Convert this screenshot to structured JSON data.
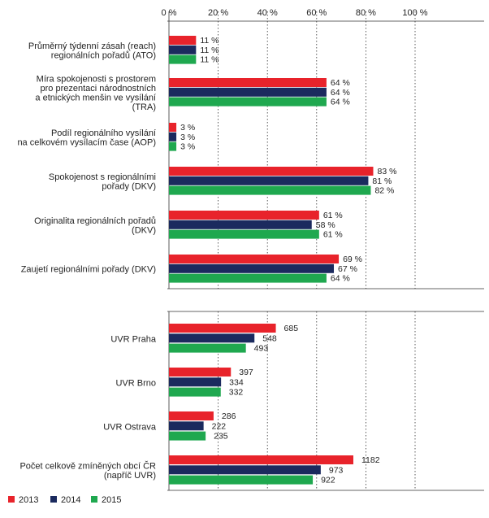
{
  "colors": {
    "2013": "#e8232b",
    "2014": "#1b2a5e",
    "2015": "#1fa84f"
  },
  "legend": [
    {
      "label": "2013",
      "color": "#e8232b"
    },
    {
      "label": "2014",
      "color": "#1b2a5e"
    },
    {
      "label": "2015",
      "color": "#1fa84f"
    }
  ],
  "chart_data": [
    {
      "type": "bar",
      "orientation": "horizontal",
      "title": "",
      "axis_ticks": [
        "0 %",
        "20 %",
        "40 %",
        "60 %",
        "80 %",
        "100 %"
      ],
      "xlim": [
        0,
        100
      ],
      "grid": true,
      "categories": [
        [
          "Průměrný týdenní zásah (reach)",
          "regionálních pořadů (ATO)"
        ],
        [
          "Míra spokojenosti s prostorem",
          "pro prezentaci národnostních",
          "a etnických menšin ve vysílání",
          "(TRA)"
        ],
        [
          "Podíl regionálního vysílání",
          "na celkovém vysílacím čase (AOP)"
        ],
        [
          "Spokojenost s regionálními",
          "pořady (DKV)"
        ],
        [
          "Originalita regionálních pořadů",
          "(DKV)"
        ],
        [
          "Zaujetí regionálními pořady (DKV)"
        ]
      ],
      "series": [
        {
          "name": "2013",
          "values": [
            11,
            64,
            3,
            83,
            61,
            69
          ],
          "labels": [
            "11 %",
            "64 %",
            "3 %",
            "83 %",
            "61 %",
            "69 %"
          ]
        },
        {
          "name": "2014",
          "values": [
            11,
            64,
            3,
            81,
            58,
            67
          ],
          "labels": [
            "11 %",
            "64 %",
            "3 %",
            "81 %",
            "58 %",
            "67 %"
          ]
        },
        {
          "name": "2015",
          "values": [
            11,
            64,
            3,
            82,
            61,
            64
          ],
          "labels": [
            "11 %",
            "64 %",
            "3 %",
            "82 %",
            "61 %",
            "64 %"
          ]
        }
      ]
    },
    {
      "type": "bar",
      "orientation": "horizontal",
      "title": "",
      "xlim": [
        0,
        1550
      ],
      "grid": true,
      "categories": [
        [
          "UVR Praha"
        ],
        [
          "UVR Brno"
        ],
        [
          "UVR Ostrava"
        ],
        [
          "Počet celkově zmíněných obcí ČR",
          "(napříč UVR)"
        ]
      ],
      "series": [
        {
          "name": "2013",
          "values": [
            685,
            397,
            286,
            1182
          ],
          "labels": [
            "685",
            "397",
            "286",
            "1182"
          ]
        },
        {
          "name": "2014",
          "values": [
            548,
            334,
            222,
            973
          ],
          "labels": [
            "548",
            "334",
            "222",
            "973"
          ]
        },
        {
          "name": "2015",
          "values": [
            493,
            332,
            235,
            922
          ],
          "labels": [
            "493",
            "332",
            "235",
            "922"
          ]
        }
      ]
    }
  ]
}
